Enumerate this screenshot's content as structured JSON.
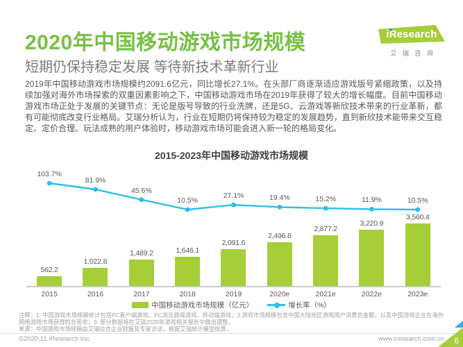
{
  "page": {
    "title": "2020年中国移动游戏市场规模",
    "subtitle": "短期仍保持稳定发展 等待新技术革新行业",
    "page_number": "6",
    "body_paragraph": "2019年中国移动游戏市场规模约2091.6亿元，同比增长27.1%。在头部厂商逐渐适应游戏版号紧缩政策，以及持续加强对海外市场探索的双重因素影响之下，中国移动游戏市场在2019年获得了较大的增长幅度。目前中国移动游戏市场正处于发展的关键节点：无论是版号导致的行业洗牌，还是5G、云游戏等新欣技术带来的行业革新，都有可能彻底改变行业格局。艾瑞分析认为，行业在短期仍将保持较为稳定的发展趋势，直到新欣技术能带来交互稳定、定价合理、玩法成熟的用户体验时，移动游戏市场可能会进入新一轮的格局变化。",
    "footer_left": "©2020.11 iResearch Inc.",
    "footer_right": "www.iresearch.com.cn"
  },
  "logo": {
    "brand": "iResearch",
    "tagline": "艾瑞咨询"
  },
  "notes": {
    "annotation": "注释：1. 中国游戏市场规模统计包括PC客户端游戏、PC浏览器端游戏、移动端游戏；2.游戏市场规模包含中国大陆地区游戏用户消费总金额，以及中国游戏企业在海外网络游戏市场获得的总营收；3. 部分数据将在艾瑞2020年游戏相关报告中做出调整。",
    "source": "来源：中国游戏市场规模由艾瑞综合企业财报及专家访谈，根据艾瑞统计模型核算。"
  },
  "colors": {
    "title_green": "#77C043",
    "brand_green": "#A5CE39",
    "line_cyan": "#2FBEE9",
    "text_gray": "#595757",
    "note_gray": "#9FA0A0"
  },
  "chart_data": {
    "type": "bar",
    "combo": "bar+line",
    "title": "2015-2023年中国移动游戏市场规模",
    "categories": [
      "2015",
      "2016",
      "2017",
      "2018",
      "2019",
      "2020e",
      "2021e",
      "2022e",
      "2023e"
    ],
    "series": [
      {
        "name": "中国移动游戏市场规模（亿元）",
        "type": "bar",
        "color": "#A5CE39",
        "values": [
          562.2,
          1022.8,
          1489.2,
          1646.1,
          2091.6,
          2496.8,
          2877.2,
          3220.9,
          3560.4
        ]
      },
      {
        "name": "增长率（%）",
        "type": "line",
        "color": "#2FBEE9",
        "values": [
          103.7,
          81.9,
          45.6,
          10.5,
          27.1,
          19.4,
          15.2,
          11.9,
          10.5
        ]
      }
    ],
    "value_labels": true,
    "legend_position": "bottom",
    "xlabel": "",
    "ylabel": "",
    "grid": false
  }
}
